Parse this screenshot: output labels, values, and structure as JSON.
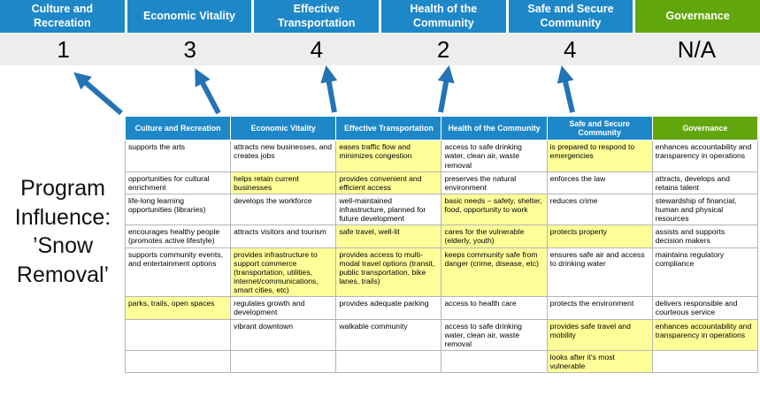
{
  "title": "Program Influence: ’Snow Removal’",
  "colors": {
    "pillar_blue": "#1e87c8",
    "governance_green": "#62a60e",
    "highlight_yellow": "#ffff99",
    "score_band_gray": "#ededed",
    "arrow_blue": "#2474b5"
  },
  "scorecard": {
    "columns": [
      {
        "label": "Culture and Recreation",
        "score": "1",
        "color": "#1e87c8"
      },
      {
        "label": "Economic Vitality",
        "score": "3",
        "color": "#1e87c8"
      },
      {
        "label": "Effective Transportation",
        "score": "4",
        "color": "#1e87c8"
      },
      {
        "label": "Health of the Community",
        "score": "2",
        "color": "#1e87c8"
      },
      {
        "label": "Safe and Secure Community",
        "score": "4",
        "color": "#1e87c8"
      },
      {
        "label": "Governance",
        "score": "N/A",
        "color": "#62a60e"
      }
    ]
  },
  "table": {
    "columns": [
      {
        "label": "Culture and Recreation",
        "color": "#1e87c8"
      },
      {
        "label": "Economic Vitality",
        "color": "#1e87c8"
      },
      {
        "label": "Effective Transportation",
        "color": "#1e87c8"
      },
      {
        "label": "Health of the Community",
        "color": "#1e87c8"
      },
      {
        "label": "Safe and Secure Community",
        "color": "#1e87c8"
      },
      {
        "label": "Governance",
        "color": "#62a60e"
      }
    ],
    "rows": [
      [
        {
          "text": "supports the arts"
        },
        {
          "text": "attracts new businesses, and creates jobs"
        },
        {
          "text": "eases traffic flow and minimizes congestion",
          "highlight": true
        },
        {
          "text": "access to safe drinking water, clean air, waste removal"
        },
        {
          "text": "is prepared to respond to emergencies",
          "highlight": true
        },
        {
          "text": "enhances accountability and transparency in operations"
        }
      ],
      [
        {
          "text": "opportunities for cultural enrichment"
        },
        {
          "text": "helps retain current businesses",
          "highlight": true
        },
        {
          "text": "provides convenient and efficient access",
          "highlight": true
        },
        {
          "text": "preserves the natural environment"
        },
        {
          "text": "enforces the law"
        },
        {
          "text": "attracts, develops and retains talent"
        }
      ],
      [
        {
          "text": "life-long learning opportunities (libraries)"
        },
        {
          "text": "develops the workforce"
        },
        {
          "text": "well-maintained infrastructure, planned for future development"
        },
        {
          "text": "basic needs – safety, shelter, food, opportunity to work",
          "highlight": true
        },
        {
          "text": "reduces crime"
        },
        {
          "text": "stewardship of financial, human and physical resources"
        }
      ],
      [
        {
          "text": "encourages healthy people (promotes active lifestyle)"
        },
        {
          "text": "attracts visitors and tourism"
        },
        {
          "text": "safe travel, well-lit",
          "highlight": true
        },
        {
          "text": "cares for the vulnerable (elderly, youth)",
          "highlight": true
        },
        {
          "text": "protects property",
          "highlight": true
        },
        {
          "text": "assists and supports decision makers"
        }
      ],
      [
        {
          "text": "supports community events, and entertainment options"
        },
        {
          "text": "provides infrastructure to support commerce (transportation, utilities, internet/communications, smart cities, etc)",
          "highlight": true
        },
        {
          "text": "provides access to multi-modal travel options (transit, public transportation, bike lanes, trails)",
          "highlight": true
        },
        {
          "text": "keeps community safe from danger (crime, disease, etc)",
          "highlight": true
        },
        {
          "text": "ensures safe air and access to drinking water"
        },
        {
          "text": "maintains regulatory compliance"
        }
      ],
      [
        {
          "text": "parks, trails, open spaces",
          "highlight": true
        },
        {
          "text": "regulates growth and development"
        },
        {
          "text": "provides adequate parking"
        },
        {
          "text": "access to health care"
        },
        {
          "text": "protects the environment"
        },
        {
          "text": "delivers responsible and courteous service"
        }
      ],
      [
        {
          "text": ""
        },
        {
          "text": "vibrant downtown"
        },
        {
          "text": "walkable community"
        },
        {
          "text": "access to safe drinking water, clean air, waste removal"
        },
        {
          "text": "provides safe travel and mobility",
          "highlight": true
        },
        {
          "text": "enhances accountability and transparency in operations",
          "highlight": true
        }
      ],
      [
        {
          "text": ""
        },
        {
          "text": ""
        },
        {
          "text": ""
        },
        {
          "text": ""
        },
        {
          "text": "looks after it's most vulnerable",
          "highlight": true
        },
        {
          "text": ""
        }
      ]
    ]
  }
}
